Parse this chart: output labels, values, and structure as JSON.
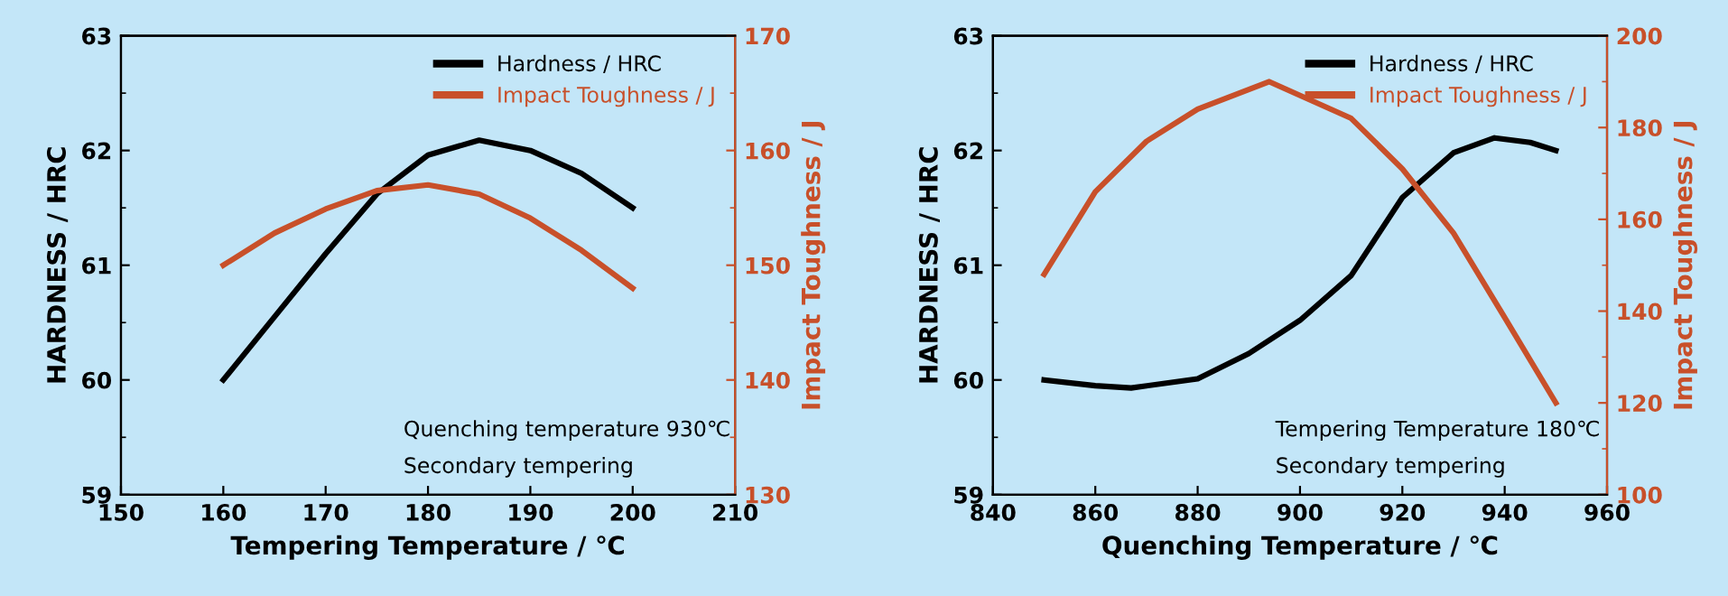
{
  "chart_data": [
    {
      "type": "line",
      "xlabel": "Tempering Temperature / ℃",
      "ylabel": "HARDNESS / HRC",
      "y2label": "Impact Toughness / J",
      "xlim": [
        150,
        210
      ],
      "xticks": [
        150,
        160,
        170,
        180,
        190,
        200,
        210
      ],
      "ylim": [
        59,
        63
      ],
      "yticks": [
        59,
        60,
        61,
        62,
        63
      ],
      "y2lim": [
        130,
        170
      ],
      "y2ticks": [
        130,
        140,
        150,
        160,
        170
      ],
      "legend": "top right",
      "grid": false,
      "annotations": [
        "Quenching temperature 930℃",
        "Secondary tempering"
      ],
      "series": [
        {
          "name": "Hardness / HRC",
          "color": "#000000",
          "x": [
            160,
            165,
            170,
            175,
            180,
            185,
            190,
            195,
            200
          ],
          "values": [
            60.0,
            60.55,
            61.1,
            61.62,
            61.96,
            62.09,
            62.0,
            61.8,
            61.5
          ]
        },
        {
          "name": "Impact Toughness / J",
          "color": "#c8502a",
          "axis": "y2",
          "x": [
            160,
            165,
            170,
            175,
            180,
            185,
            190,
            195,
            200
          ],
          "values": [
            150.0,
            152.8,
            154.9,
            156.5,
            157.0,
            156.2,
            154.1,
            151.3,
            148.0
          ]
        }
      ]
    },
    {
      "type": "line",
      "xlabel": "Quenching Temperature / ℃",
      "ylabel": "HARDNESS / HRC",
      "y2label": "Impact Toughness / J",
      "xlim": [
        840,
        960
      ],
      "xticks": [
        840,
        860,
        880,
        900,
        920,
        940,
        960
      ],
      "ylim": [
        59,
        63
      ],
      "yticks": [
        59,
        60,
        61,
        62,
        63
      ],
      "y2lim": [
        100,
        200
      ],
      "y2ticks": [
        100,
        120,
        140,
        160,
        180,
        200
      ],
      "legend": "top right",
      "grid": false,
      "annotations": [
        "Tempering Temperature 180℃",
        "Secondary tempering"
      ],
      "series": [
        {
          "name": "Hardness / HRC",
          "color": "#000000",
          "x": [
            850,
            860,
            867,
            880,
            890,
            900,
            910,
            920,
            930,
            938,
            945,
            950
          ],
          "values": [
            60.0,
            59.95,
            59.93,
            60.01,
            60.23,
            60.52,
            60.91,
            61.59,
            61.98,
            62.11,
            62.07,
            62.0
          ]
        },
        {
          "name": "Impact Toughness / J",
          "color": "#c8502a",
          "axis": "y2",
          "x": [
            850,
            860,
            870,
            880,
            894,
            910,
            920,
            930,
            940,
            950
          ],
          "values": [
            148,
            166,
            177,
            184,
            190,
            182,
            171,
            157,
            138.6,
            120
          ]
        }
      ]
    }
  ]
}
